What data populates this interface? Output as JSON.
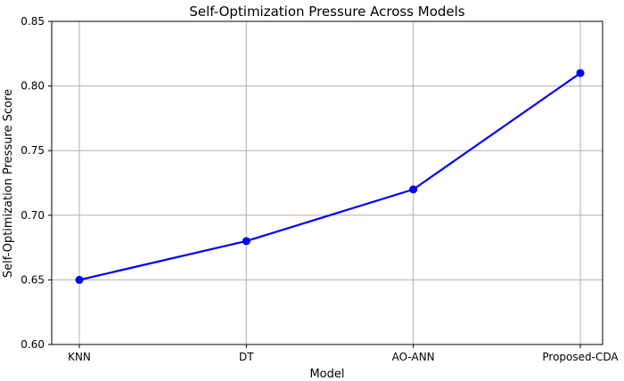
{
  "chart_data": {
    "type": "line",
    "title": "Self-Optimization Pressure Across Models",
    "xlabel": "Model",
    "ylabel": "Self-Optimization Pressure Score",
    "categories": [
      "KNN",
      "DT",
      "AO-ANN",
      "Proposed-CDA"
    ],
    "series": [
      {
        "values": [
          0.65,
          0.68,
          0.72,
          0.81
        ],
        "color": "#0000ff",
        "marker": "circle"
      }
    ],
    "ylim": [
      0.6,
      0.85
    ],
    "yticks": [
      "0.60",
      "0.65",
      "0.70",
      "0.75",
      "0.80",
      "0.85"
    ],
    "grid": true,
    "legend": "none"
  }
}
